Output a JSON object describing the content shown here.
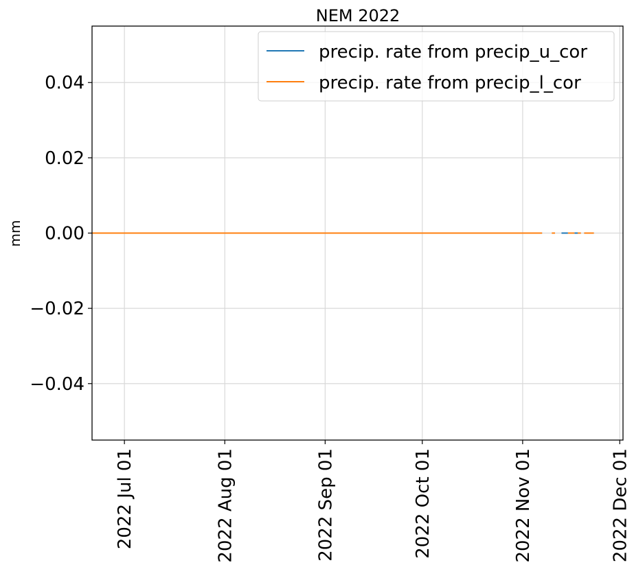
{
  "chart_data": {
    "type": "line",
    "title": "NEM 2022",
    "xlabel": "",
    "ylabel": "mm",
    "xlim": [
      "2022-06-21",
      "2022-12-02"
    ],
    "ylim": [
      -0.055,
      0.055
    ],
    "x_ticks": [
      {
        "date": "2022-07-01",
        "label": "2022 Jul 01"
      },
      {
        "date": "2022-08-01",
        "label": "2022 Aug 01"
      },
      {
        "date": "2022-09-01",
        "label": "2022 Sep 01"
      },
      {
        "date": "2022-10-01",
        "label": "2022 Oct 01"
      },
      {
        "date": "2022-11-01",
        "label": "2022 Nov 01"
      },
      {
        "date": "2022-12-01",
        "label": "2022 Dec 01"
      }
    ],
    "y_ticks": [
      {
        "value": 0.04,
        "label": "0.04"
      },
      {
        "value": 0.02,
        "label": "0.02"
      },
      {
        "value": 0.0,
        "label": "0.00"
      },
      {
        "value": -0.02,
        "label": "−0.02"
      },
      {
        "value": -0.04,
        "label": "−0.04"
      }
    ],
    "grid": true,
    "legend_position": "top-right",
    "series": [
      {
        "name": "precip. rate from precip_u_cor",
        "color": "#1f77b4",
        "segments": [
          {
            "x": [
              "2022-06-21",
              "2022-11-07"
            ],
            "y": [
              0,
              0
            ]
          },
          {
            "x": [
              "2022-11-13",
              "2022-11-15"
            ],
            "y": [
              0,
              0
            ]
          },
          {
            "x": [
              "2022-11-17",
              "2022-11-18"
            ],
            "y": [
              0,
              0
            ]
          },
          {
            "x": [
              "2022-11-20",
              "2022-11-23"
            ],
            "y": [
              0,
              0
            ]
          }
        ]
      },
      {
        "name": "precip. rate from precip_l_cor",
        "color": "#ff7f0e",
        "segments": [
          {
            "x": [
              "2022-06-21",
              "2022-11-07"
            ],
            "y": [
              0,
              0
            ]
          },
          {
            "x": [
              "2022-11-10",
              "2022-11-11"
            ],
            "y": [
              0,
              0
            ]
          },
          {
            "x": [
              "2022-11-15",
              "2022-11-17"
            ],
            "y": [
              0,
              0
            ]
          },
          {
            "x": [
              "2022-11-18",
              "2022-11-19"
            ],
            "y": [
              0,
              0
            ]
          },
          {
            "x": [
              "2022-11-20",
              "2022-11-23"
            ],
            "y": [
              0,
              0
            ]
          }
        ]
      }
    ]
  }
}
